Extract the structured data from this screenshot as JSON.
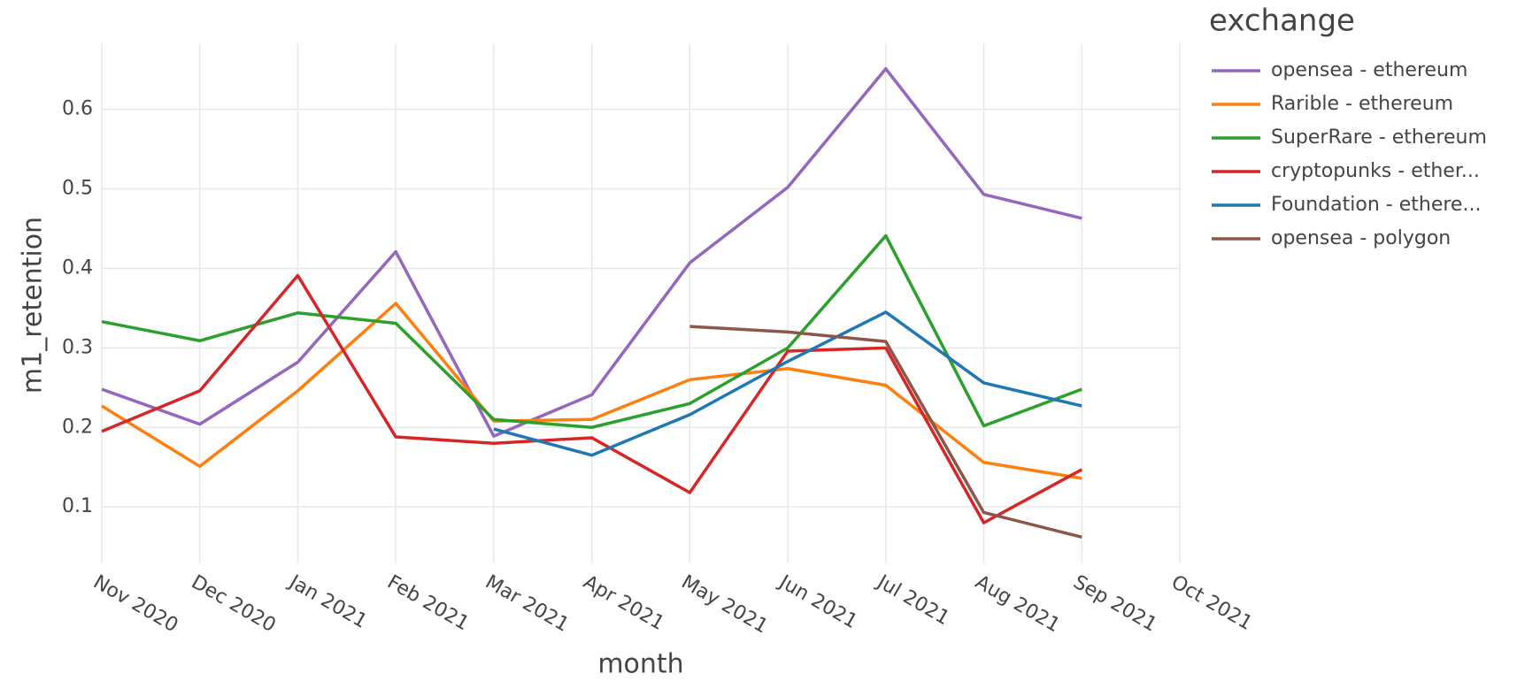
{
  "chart_data": {
    "type": "line",
    "x_label": "month",
    "y_label": "m1_retention",
    "legend_title": "exchange",
    "categories": [
      "Nov 2020",
      "Dec 2020",
      "Jan 2021",
      "Feb 2021",
      "Mar 2021",
      "Apr 2021",
      "May 2021",
      "Jun 2021",
      "Jul 2021",
      "Aug 2021",
      "Sep 2021",
      "Oct 2021"
    ],
    "series": [
      {
        "name": "opensea - ethereum",
        "color": "#9467bd",
        "values": [
          0.248,
          0.204,
          0.282,
          0.421,
          0.189,
          0.241,
          0.407,
          0.502,
          0.651,
          0.493,
          0.463,
          null
        ]
      },
      {
        "name": "Rarible - ethereum",
        "color": "#ff7f0e",
        "values": [
          0.227,
          0.151,
          0.246,
          0.356,
          0.208,
          0.21,
          0.26,
          0.274,
          0.253,
          0.156,
          0.136,
          null
        ]
      },
      {
        "name": "SuperRare - ethereum",
        "color": "#2ca02c",
        "values": [
          0.333,
          0.309,
          0.344,
          0.331,
          0.21,
          0.2,
          0.23,
          0.3,
          0.441,
          0.202,
          0.248,
          null
        ]
      },
      {
        "name": "cryptopunks - ether...",
        "color": "#d62728",
        "values": [
          0.195,
          0.246,
          0.391,
          0.188,
          0.18,
          0.187,
          0.118,
          0.296,
          0.3,
          0.08,
          0.147,
          null
        ]
      },
      {
        "name": "Foundation - ethere...",
        "color": "#1f77b4",
        "values": [
          null,
          null,
          null,
          null,
          0.198,
          0.165,
          0.216,
          0.283,
          0.345,
          0.256,
          0.227,
          null
        ]
      },
      {
        "name": "opensea - polygon",
        "color": "#8c564b",
        "values": [
          null,
          null,
          null,
          null,
          null,
          null,
          0.327,
          0.32,
          0.308,
          0.093,
          0.062,
          null
        ]
      }
    ],
    "ylim": [
      0.029,
      0.683
    ],
    "yticks": [
      0.1,
      0.2,
      0.3,
      0.4,
      0.5,
      0.6
    ],
    "grid": true
  }
}
